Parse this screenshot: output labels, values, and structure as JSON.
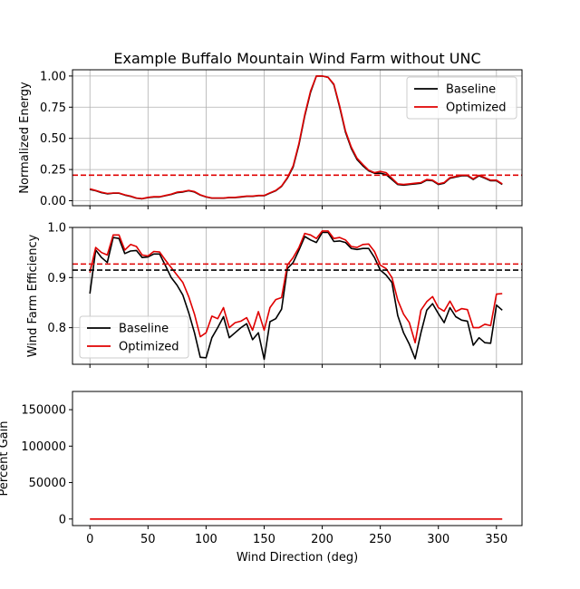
{
  "chart_data": [
    {
      "type": "line",
      "title": "Example Buffalo Mountain Wind Farm without UNC",
      "xlabel": "",
      "ylabel": "Normalized Energy",
      "xlim": [
        -15,
        372
      ],
      "ylim": [
        -0.04,
        1.05
      ],
      "yticks": [
        0.0,
        0.25,
        0.5,
        0.75,
        1.0
      ],
      "ytick_labels": [
        "0.00",
        "0.25",
        "0.50",
        "0.75",
        "1.00"
      ],
      "grid": true,
      "legend": "top-right",
      "x": [
        0,
        5,
        10,
        15,
        20,
        25,
        30,
        35,
        40,
        45,
        50,
        55,
        60,
        65,
        70,
        75,
        80,
        85,
        90,
        95,
        100,
        105,
        110,
        115,
        120,
        125,
        130,
        135,
        140,
        145,
        150,
        155,
        160,
        165,
        170,
        175,
        180,
        185,
        190,
        195,
        200,
        205,
        210,
        215,
        220,
        225,
        230,
        235,
        240,
        245,
        250,
        255,
        260,
        265,
        270,
        275,
        280,
        285,
        290,
        295,
        300,
        305,
        310,
        315,
        320,
        325,
        330,
        335,
        340,
        345,
        350,
        355
      ],
      "series": [
        {
          "name": "Baseline",
          "color": "#000000",
          "style": "solid",
          "values": [
            0.09,
            0.08,
            0.065,
            0.055,
            0.06,
            0.06,
            0.045,
            0.035,
            0.02,
            0.015,
            0.025,
            0.03,
            0.03,
            0.04,
            0.05,
            0.065,
            0.07,
            0.08,
            0.07,
            0.045,
            0.03,
            0.02,
            0.02,
            0.02,
            0.025,
            0.025,
            0.03,
            0.035,
            0.035,
            0.04,
            0.04,
            0.06,
            0.08,
            0.115,
            0.18,
            0.27,
            0.45,
            0.68,
            0.87,
            1.0,
            1.0,
            0.99,
            0.93,
            0.75,
            0.55,
            0.42,
            0.33,
            0.28,
            0.24,
            0.22,
            0.22,
            0.21,
            0.17,
            0.13,
            0.125,
            0.13,
            0.135,
            0.14,
            0.165,
            0.16,
            0.13,
            0.14,
            0.18,
            0.19,
            0.2,
            0.2,
            0.17,
            0.2,
            0.18,
            0.16,
            0.16,
            0.13
          ]
        },
        {
          "name": "Optimized",
          "color": "#e00000",
          "style": "solid",
          "values": [
            0.095,
            0.082,
            0.068,
            0.058,
            0.062,
            0.062,
            0.047,
            0.037,
            0.022,
            0.017,
            0.027,
            0.032,
            0.032,
            0.042,
            0.052,
            0.068,
            0.073,
            0.083,
            0.073,
            0.047,
            0.032,
            0.022,
            0.022,
            0.022,
            0.027,
            0.027,
            0.032,
            0.037,
            0.037,
            0.042,
            0.042,
            0.063,
            0.083,
            0.118,
            0.185,
            0.28,
            0.46,
            0.69,
            0.88,
            1.0,
            1.0,
            0.99,
            0.935,
            0.76,
            0.56,
            0.43,
            0.34,
            0.29,
            0.245,
            0.225,
            0.235,
            0.225,
            0.18,
            0.135,
            0.13,
            0.135,
            0.14,
            0.145,
            0.17,
            0.165,
            0.135,
            0.145,
            0.185,
            0.195,
            0.205,
            0.205,
            0.175,
            0.205,
            0.185,
            0.165,
            0.165,
            0.135
          ]
        },
        {
          "name": "",
          "color": "#e00000",
          "style": "dashed",
          "constant": 0.205
        }
      ]
    },
    {
      "type": "line",
      "title": "",
      "xlabel": "",
      "ylabel": "Wind Farm Efficiency",
      "xlim": [
        -15,
        372
      ],
      "ylim": [
        0.727,
        1.0
      ],
      "yticks": [
        0.8,
        0.9,
        1.0
      ],
      "ytick_labels": [
        "0.8",
        "0.9",
        "1.0"
      ],
      "grid": true,
      "legend": "bottom-left",
      "x": [
        0,
        5,
        10,
        15,
        20,
        25,
        30,
        35,
        40,
        45,
        50,
        55,
        60,
        65,
        70,
        75,
        80,
        85,
        90,
        95,
        100,
        105,
        110,
        115,
        120,
        125,
        130,
        135,
        140,
        145,
        150,
        155,
        160,
        165,
        170,
        175,
        180,
        185,
        190,
        195,
        200,
        205,
        210,
        215,
        220,
        225,
        230,
        235,
        240,
        245,
        250,
        255,
        260,
        265,
        270,
        275,
        280,
        285,
        290,
        295,
        300,
        305,
        310,
        315,
        320,
        325,
        330,
        335,
        340,
        345,
        350,
        355
      ],
      "series": [
        {
          "name": "Baseline",
          "color": "#000000",
          "style": "solid",
          "values": [
            0.868,
            0.955,
            0.94,
            0.93,
            0.98,
            0.978,
            0.948,
            0.953,
            0.954,
            0.94,
            0.941,
            0.947,
            0.947,
            0.924,
            0.9,
            0.885,
            0.865,
            0.83,
            0.79,
            0.741,
            0.74,
            0.78,
            0.8,
            0.822,
            0.78,
            0.79,
            0.8,
            0.808,
            0.776,
            0.79,
            0.737,
            0.812,
            0.818,
            0.837,
            0.918,
            0.93,
            0.955,
            0.982,
            0.975,
            0.97,
            0.99,
            0.99,
            0.972,
            0.973,
            0.97,
            0.958,
            0.956,
            0.958,
            0.958,
            0.94,
            0.915,
            0.905,
            0.89,
            0.824,
            0.79,
            0.767,
            0.738,
            0.79,
            0.835,
            0.848,
            0.828,
            0.81,
            0.84,
            0.822,
            0.815,
            0.813,
            0.765,
            0.78,
            0.77,
            0.769,
            0.845,
            0.835
          ]
        },
        {
          "name": "Optimized",
          "color": "#e00000",
          "style": "solid",
          "values": [
            0.91,
            0.96,
            0.95,
            0.945,
            0.985,
            0.985,
            0.955,
            0.966,
            0.962,
            0.945,
            0.943,
            0.952,
            0.951,
            0.935,
            0.92,
            0.905,
            0.89,
            0.862,
            0.827,
            0.782,
            0.79,
            0.823,
            0.818,
            0.84,
            0.8,
            0.81,
            0.813,
            0.82,
            0.795,
            0.832,
            0.795,
            0.84,
            0.856,
            0.86,
            0.925,
            0.94,
            0.96,
            0.988,
            0.985,
            0.978,
            0.993,
            0.993,
            0.978,
            0.98,
            0.975,
            0.962,
            0.96,
            0.966,
            0.967,
            0.952,
            0.925,
            0.918,
            0.9,
            0.855,
            0.827,
            0.81,
            0.77,
            0.835,
            0.852,
            0.862,
            0.84,
            0.833,
            0.853,
            0.832,
            0.838,
            0.836,
            0.8,
            0.8,
            0.807,
            0.804,
            0.867,
            0.868
          ]
        },
        {
          "name": "",
          "color": "#000000",
          "style": "dashed",
          "constant": 0.915
        },
        {
          "name": "",
          "color": "#e00000",
          "style": "dashed",
          "constant": 0.927
        }
      ]
    },
    {
      "type": "line",
      "title": "",
      "xlabel": "Wind Direction (deg)",
      "ylabel": "Percent Gain",
      "xlim": [
        -15,
        372
      ],
      "ylim": [
        -9000,
        175000
      ],
      "yticks": [
        0,
        50000,
        100000,
        150000
      ],
      "ytick_labels": [
        "0",
        "50000",
        "100000",
        "150000"
      ],
      "xticks": [
        0,
        50,
        100,
        150,
        200,
        250,
        300,
        350
      ],
      "xtick_labels": [
        "0",
        "50",
        "100",
        "150",
        "200",
        "250",
        "300",
        "350"
      ],
      "grid": false,
      "legend": "none",
      "series": [
        {
          "name": "",
          "color": "#e00000",
          "style": "solid",
          "x": [
            0,
            355
          ],
          "values": [
            0,
            0
          ]
        }
      ]
    }
  ]
}
